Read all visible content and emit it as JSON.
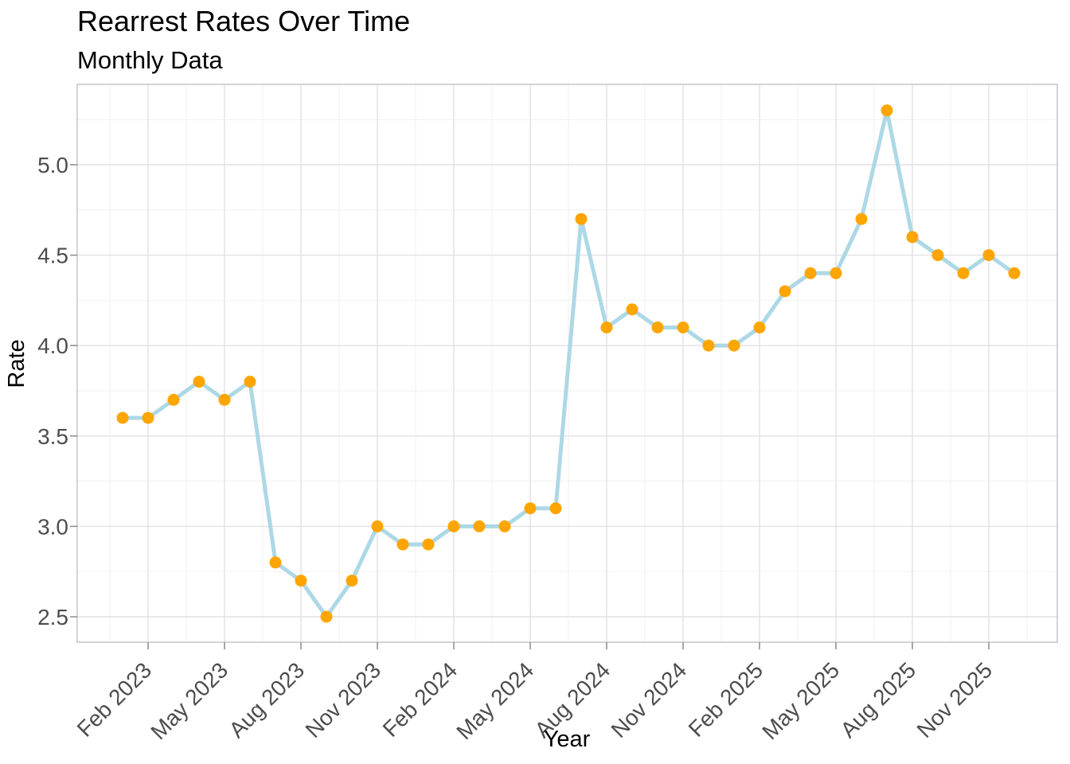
{
  "page": {
    "background": "#ffffff"
  },
  "chart_data": {
    "type": "line",
    "title": "Rearrest Rates Over Time",
    "subtitle": "Monthly Data",
    "xlabel": "Year",
    "ylabel": "Rate",
    "x": [
      "Jan 2023",
      "Feb 2023",
      "Mar 2023",
      "Apr 2023",
      "May 2023",
      "Jun 2023",
      "Jul 2023",
      "Aug 2023",
      "Sep 2023",
      "Oct 2023",
      "Nov 2023",
      "Dec 2023",
      "Jan 2024",
      "Feb 2024",
      "Mar 2024",
      "Apr 2024",
      "May 2024",
      "Jun 2024",
      "Jul 2024",
      "Aug 2024",
      "Sep 2024",
      "Oct 2024",
      "Nov 2024",
      "Dec 2024",
      "Jan 2025",
      "Feb 2025",
      "Mar 2025",
      "Apr 2025",
      "May 2025",
      "Jun 2025",
      "Jul 2025",
      "Aug 2025",
      "Sep 2025",
      "Oct 2025",
      "Nov 2025",
      "Dec 2025"
    ],
    "series": [
      {
        "name": "Rate",
        "values": [
          3.6,
          3.6,
          3.7,
          3.8,
          3.7,
          3.8,
          2.8,
          2.7,
          2.5,
          2.7,
          3.0,
          2.9,
          2.9,
          3.0,
          3.0,
          3.0,
          3.1,
          3.1,
          4.7,
          4.1,
          4.2,
          4.1,
          4.1,
          4.0,
          4.0,
          4.1,
          4.3,
          4.4,
          4.4,
          4.7,
          5.3,
          4.6,
          4.5,
          4.4,
          4.5,
          4.4
        ]
      }
    ],
    "x_ticks": {
      "indices": [
        1,
        4,
        7,
        10,
        13,
        16,
        19,
        22,
        25,
        28,
        31,
        34
      ],
      "labels": [
        "Feb 2023",
        "May 2023",
        "Aug 2023",
        "Nov 2023",
        "Feb 2024",
        "May 2024",
        "Aug 2024",
        "Nov 2024",
        "Feb 2025",
        "May 2025",
        "Aug 2025",
        "Nov 2025"
      ],
      "angle": 45
    },
    "y_ticks": {
      "values": [
        2.5,
        3.0,
        3.5,
        4.0,
        4.5,
        5.0
      ],
      "labels": [
        "2.5",
        "3.0",
        "3.5",
        "4.0",
        "4.5",
        "5.0"
      ]
    },
    "y_minor": [
      2.75,
      3.25,
      3.75,
      4.25,
      4.75,
      5.25
    ],
    "ylim": [
      2.36,
      5.44
    ],
    "grid": "major+minor",
    "legend": "none",
    "colors": {
      "line": "#ADD8E6",
      "point": "#FFA500",
      "grid_major": "#e2e2e2",
      "grid_minor": "#f1f1f1",
      "panel_border": "#c9c9c9",
      "tick_mark": "#8a8a8a",
      "tick_label": "#4d4d4d",
      "text": "#000000"
    }
  }
}
